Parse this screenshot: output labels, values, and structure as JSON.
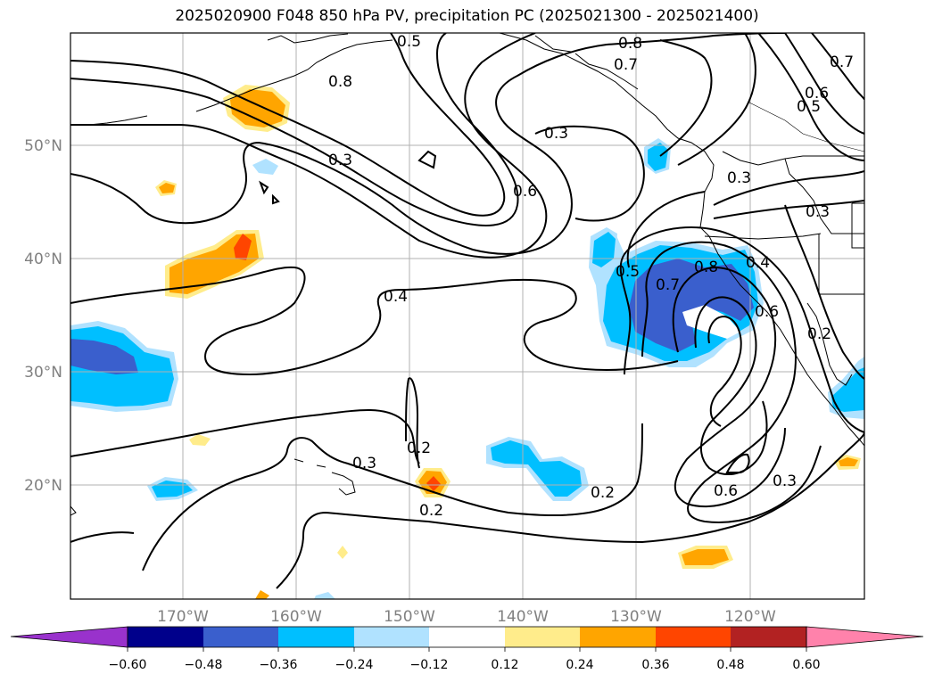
{
  "title": "2025020900 F048 850 hPa PV, precipitation PC (2025021300 - 2025021400)",
  "lat_labels": [
    "50°N",
    "40°N",
    "30°N",
    "20°N"
  ],
  "lon_labels": [
    "170°W",
    "160°W",
    "150°W",
    "140°W",
    "130°W",
    "120°W"
  ],
  "contour_labels": [
    "0.5",
    "0.8",
    "0.7",
    "0.8",
    "0.6",
    "0.5",
    "0.7",
    "0.3",
    "0.6",
    "0.3",
    "0.3",
    "0.3",
    "0.4",
    "0.5",
    "0.7",
    "0.8",
    "0.4",
    "0.6",
    "0.2",
    "0.3",
    "0.2",
    "0.2",
    "0.6",
    "0.3",
    "0.2"
  ],
  "colorbar": {
    "ticks": [
      "−0.60",
      "−0.48",
      "−0.36",
      "−0.24",
      "−0.12",
      "0.12",
      "0.24",
      "0.36",
      "0.48",
      "0.60"
    ],
    "colors": [
      "#9932cc",
      "#00008b",
      "#3a5fcd",
      "#00bfff",
      "#b0e2ff",
      "#ffffff",
      "#ffec8b",
      "#ffa500",
      "#ff4500",
      "#b22222",
      "#ff82ab"
    ]
  },
  "colors": {
    "contour": "#000000",
    "grid": "#b0b0b0",
    "coast": "#000000"
  }
}
